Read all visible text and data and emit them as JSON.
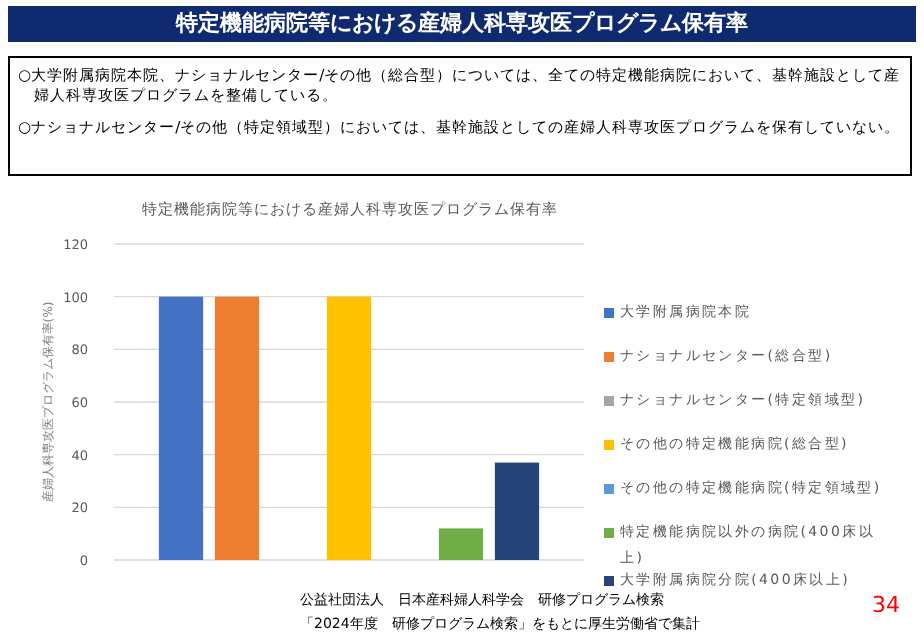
{
  "chart_data": {
    "type": "bar",
    "title": "特定機能病院等における産婦人科専攻医プログラム保有率",
    "subtitle": "特定機能病院等における産婦人科専攻医プログラム保有率",
    "ylabel": "産婦人科専攻医プログラム保有率(%)",
    "categories": [
      null
    ],
    "series": [
      {
        "name": "大学附属病院本院",
        "color": "#4472c4",
        "values": [
          100
        ]
      },
      {
        "name": "ナショナルセンター(総合型)",
        "color": "#ed7d31",
        "values": [
          100
        ]
      },
      {
        "name": "ナショナルセンター(特定領域型)",
        "color": "#a5a5a5",
        "values": [
          0
        ]
      },
      {
        "name": "その他の特定機能病院(総合型)",
        "color": "#ffc000",
        "values": [
          100
        ]
      },
      {
        "name": "その他の特定機能病院(特定領域型)",
        "color": "#5b9bd5",
        "values": [
          0
        ]
      },
      {
        "name": "特定機能病院以外の病院(400床以上)",
        "color": "#70ad47",
        "values": [
          12
        ]
      },
      {
        "name": "大学附属病院分院(400床以上)",
        "color": "#264478",
        "values": [
          37
        ]
      }
    ],
    "ylim": [
      0,
      120
    ],
    "yticks": [
      0,
      20,
      40,
      60,
      80,
      100,
      120
    ],
    "grid": "y",
    "legend": "right",
    "annotations": [
      "○大学附属病院本院、ナショナルセンター/その他（総合型）については、全ての特定機能病院において、基幹施設として産婦人科専攻医プログラムを整備している。",
      "○ナショナルセンター/その他（特定領域型）においては、基幹施設としての産婦人科専攻医プログラムを保有していない。",
      "公益社団法人　日本産科婦人科学会　研修プログラム検索",
      "「2024年度　研修プログラム検索」をもとに厚生労働省で集計",
      "34"
    ]
  }
}
